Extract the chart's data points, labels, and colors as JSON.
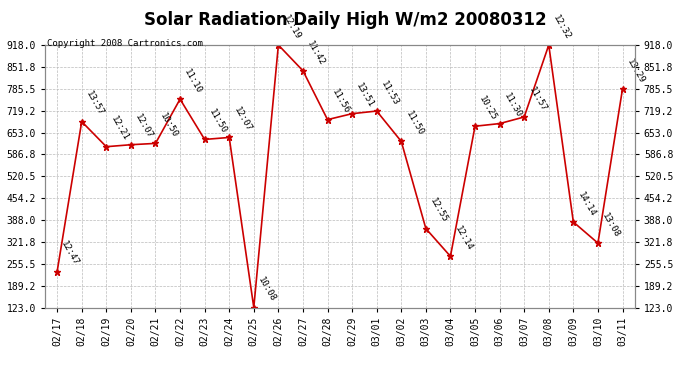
{
  "title": "Solar Radiation Daily High W/m2 20080312",
  "copyright": "Copyright 2008 Cartronics.com",
  "dates": [
    "02/17",
    "02/18",
    "02/19",
    "02/20",
    "02/21",
    "02/22",
    "02/23",
    "02/24",
    "02/25",
    "02/26",
    "02/27",
    "02/28",
    "02/29",
    "03/01",
    "03/02",
    "03/03",
    "03/04",
    "03/05",
    "03/06",
    "03/07",
    "03/08",
    "03/09",
    "03/10",
    "03/11"
  ],
  "values": [
    232,
    686,
    610,
    616,
    620,
    754,
    632,
    638,
    123,
    918,
    840,
    692,
    710,
    718,
    626,
    362,
    278,
    672,
    680,
    700,
    918,
    382,
    318,
    785
  ],
  "labels": [
    "12:47",
    "13:57",
    "12:21",
    "12:07",
    "10:50",
    "11:10",
    "11:50",
    "12:07",
    "10:08",
    "12:19",
    "11:42",
    "11:56",
    "13:51",
    "11:53",
    "11:50",
    "12:55",
    "12:14",
    "10:25",
    "11:30",
    "11:57",
    "12:32",
    "14:14",
    "13:08",
    "13:29"
  ],
  "line_color": "#cc0000",
  "marker_color": "#cc0000",
  "bg_color": "#ffffff",
  "plot_bg": "#ffffff",
  "grid_color": "#bbbbbb",
  "ylim_min": 123.0,
  "ylim_max": 918.0,
  "yticks": [
    123.0,
    189.2,
    255.5,
    321.8,
    388.0,
    454.2,
    520.5,
    586.8,
    653.0,
    719.2,
    785.5,
    851.8,
    918.0
  ],
  "title_fontsize": 12,
  "label_fontsize": 6.5,
  "tick_fontsize": 7,
  "copyright_fontsize": 6.5
}
